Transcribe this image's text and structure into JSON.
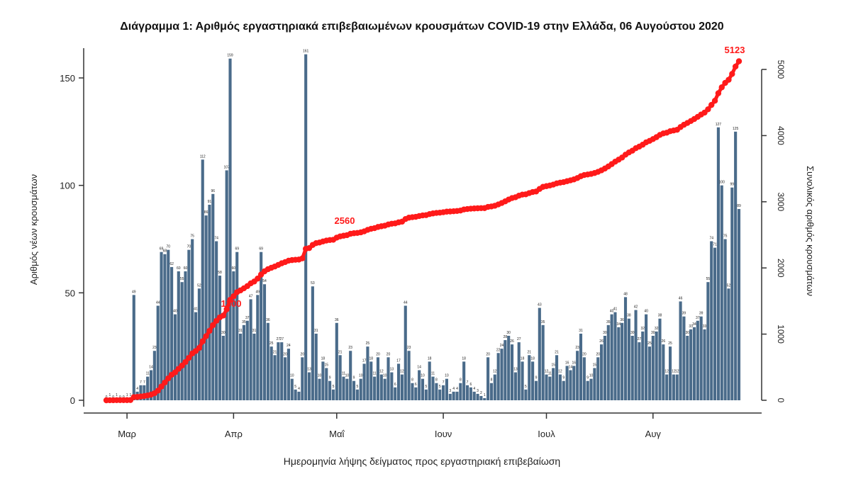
{
  "chart_data": {
    "type": "bar",
    "title": "Διάγραμμα 1: Αριθμός εργαστηριακά επιβεβαιωμένων κρουσμάτων COVID-19 στην Ελλάδα, 06 Αυγούστου 2020",
    "xlabel": "Ημερομηνία λήψης δείγματος προς εργαστηριακή επιβεβαίωση",
    "ylabel_left": "Αριθμός νέων κρουσμάτων",
    "ylabel_right": "Συνολικός αριθμός κρουσμάτων",
    "ylim_left": [
      0,
      170
    ],
    "ylim_right": [
      0,
      5200
    ],
    "yticks_left": [
      0,
      50,
      100,
      150
    ],
    "yticks_right": [
      0,
      1000,
      2000,
      3000,
      4000,
      5000
    ],
    "ytick_labels_right": [
      "0",
      "1000",
      "2000",
      "3000",
      "4000",
      "5000"
    ],
    "month_labels": [
      "Μαρ",
      "Απρ",
      "Μαΐ",
      "Ιουν",
      "Ιουλ",
      "Αυγ"
    ],
    "bar_color": "#4a6b8a",
    "line_color": "#ff1a1a",
    "annotations": [
      {
        "text": "1300",
        "series": "Συνολικός αριθμός κρουσμάτων"
      },
      {
        "text": "2560",
        "series": "Συνολικός αριθμός κρουσμάτων"
      },
      {
        "text": "5123",
        "series": "Συνολικός αριθμός κρουσμάτων"
      }
    ],
    "series": [
      {
        "name": "Αριθμός νέων κρουσμάτων",
        "kind": "bar",
        "values": [
          0,
          1,
          0,
          1,
          0,
          0,
          1,
          1,
          49,
          4,
          7,
          7,
          11,
          14,
          23,
          44,
          69,
          68,
          70,
          62,
          40,
          60,
          55,
          60,
          70,
          75,
          41,
          52,
          112,
          86,
          91,
          96,
          74,
          58,
          30,
          107,
          159,
          60,
          69,
          31,
          35,
          37,
          47,
          31,
          49,
          69,
          54,
          36,
          25,
          21,
          27,
          27,
          20,
          24,
          10,
          5,
          4,
          20,
          161,
          13,
          53,
          31,
          10,
          18,
          15,
          9,
          5,
          36,
          21,
          11,
          10,
          23,
          9,
          5,
          10,
          17,
          25,
          18,
          11,
          20,
          12,
          10,
          20,
          13,
          6,
          17,
          12,
          44,
          23,
          8,
          6,
          14,
          10,
          5,
          18,
          11,
          8,
          5,
          7,
          10,
          3,
          4,
          4,
          8,
          18,
          7,
          6,
          4,
          3,
          2,
          1,
          20,
          8,
          12,
          22,
          24,
          28,
          30,
          26,
          13,
          27,
          18,
          5,
          21,
          18,
          9,
          43,
          35,
          12,
          11,
          15,
          21,
          12,
          9,
          16,
          14,
          16,
          23,
          31,
          20,
          9,
          10,
          15,
          20,
          26,
          30,
          35,
          40,
          41,
          34,
          36,
          48,
          38,
          30,
          42,
          27,
          32,
          40,
          25,
          30,
          32,
          38,
          26,
          12,
          25,
          12,
          12,
          46,
          39,
          30,
          33,
          34,
          37,
          39,
          33,
          55,
          74,
          71,
          127,
          100,
          75,
          52,
          99,
          125,
          89
        ]
      },
      {
        "name": "Συνολικός αριθμός κρουσμάτων",
        "kind": "line",
        "note": "cumulative"
      }
    ]
  }
}
